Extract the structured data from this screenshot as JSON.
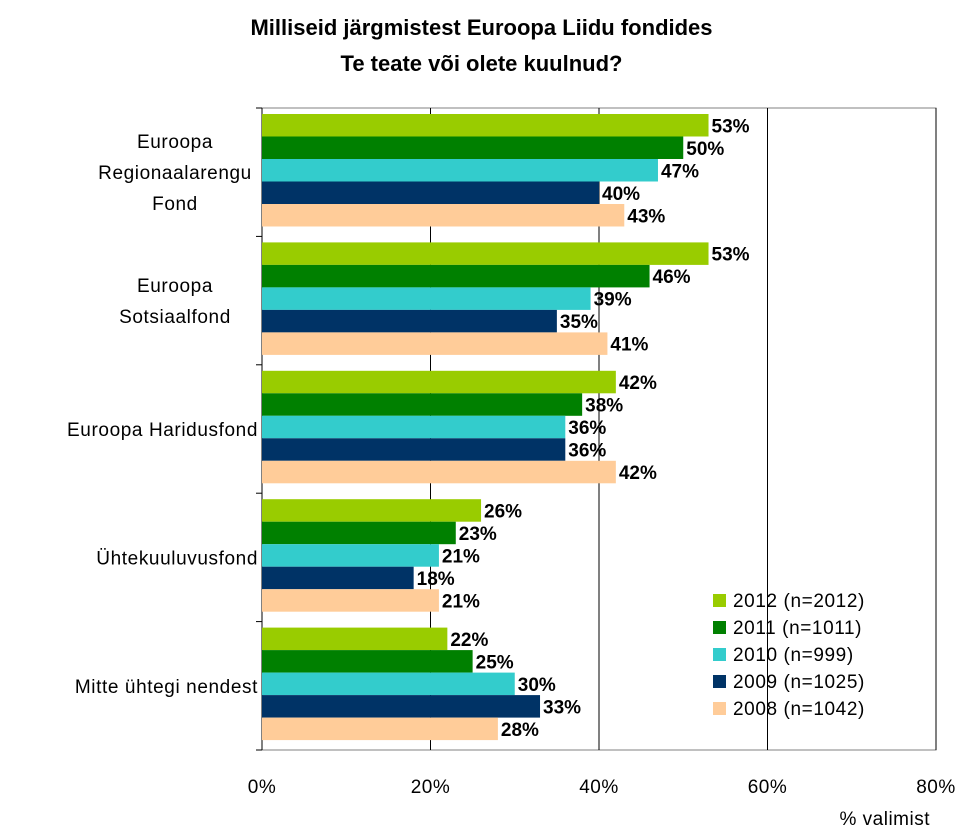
{
  "chart_data": {
    "type": "bar",
    "orientation": "horizontal",
    "title_lines": [
      "Milliseid järgmistest Euroopa Liidu fondides",
      "Te teate või olete kuulnud?"
    ],
    "categories": [
      "Euroopa Regionaalarengu Fond",
      "Euroopa Sotsiaalfond",
      "Euroopa Haridusfond",
      "Ühtekuuluvusfond",
      "Mitte ühtegi nendest"
    ],
    "category_label_lines": [
      [
        "Euroopa",
        "Regionaalarengu",
        "Fond"
      ],
      [
        "Euroopa",
        "Sotsiaalfond"
      ],
      [
        "Euroopa Haridusfond"
      ],
      [
        "Ühtekuuluvusfond"
      ],
      [
        "Mitte ühtegi nendest"
      ]
    ],
    "series": [
      {
        "name": "2012 (n=2012)",
        "color": "#99cc00",
        "values": [
          53,
          53,
          42,
          26,
          22
        ]
      },
      {
        "name": "2011 (n=1011)",
        "color": "#008000",
        "values": [
          50,
          46,
          38,
          23,
          25
        ]
      },
      {
        "name": "2010 (n=999)",
        "color": "#33cccc",
        "values": [
          47,
          39,
          36,
          21,
          30
        ]
      },
      {
        "name": "2009 (n=1025)",
        "color": "#003366",
        "values": [
          40,
          35,
          36,
          18,
          33
        ]
      },
      {
        "name": "2008 (n=1042)",
        "color": "#ffcc99",
        "values": [
          43,
          41,
          42,
          21,
          28
        ]
      }
    ],
    "data_labels": [
      [
        "53%",
        "53%",
        "42%",
        "26%",
        "22%"
      ],
      [
        "50%",
        "46%",
        "38%",
        "23%",
        "25%"
      ],
      [
        "47%",
        "39%",
        "36%",
        "21%",
        "30%"
      ],
      [
        "40%",
        "35%",
        "36%",
        "18%",
        "33%"
      ],
      [
        "43%",
        "41%",
        "42%",
        "21%",
        "28%"
      ]
    ],
    "xlim": [
      0,
      80
    ],
    "xticks": [
      0,
      20,
      40,
      60,
      80
    ],
    "xtick_labels": [
      "0%",
      "20%",
      "40%",
      "60%",
      "80%"
    ],
    "xlabel": "% valimist",
    "grid": "vertical",
    "legend_position": "bottom-right"
  }
}
